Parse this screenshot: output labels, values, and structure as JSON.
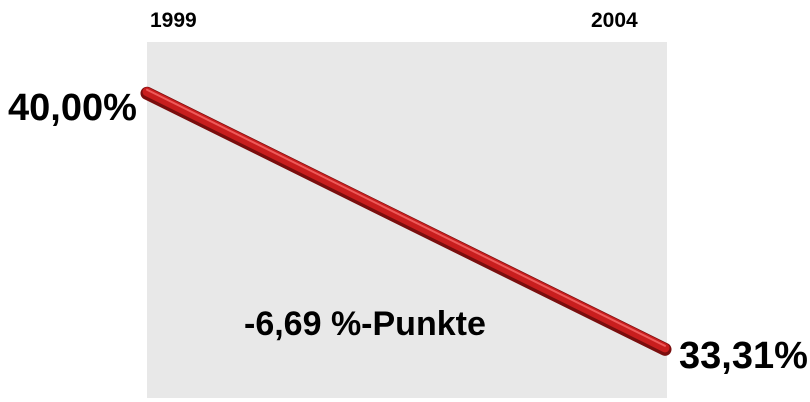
{
  "chart_data": {
    "type": "line",
    "x": [
      "1999",
      "2004"
    ],
    "tick_labels": [
      "1999",
      "2004"
    ],
    "series": [
      {
        "values": [
          40.0,
          33.31
        ],
        "color": "#c81e1e"
      }
    ],
    "value_labels": [
      "40,00%",
      "33,31%"
    ],
    "annotation": "-6,69 %-Punkte",
    "ylim": [
      32.0,
      41.3
    ],
    "plot_background": "#e8e8e8",
    "grid": false,
    "legend": "none"
  }
}
